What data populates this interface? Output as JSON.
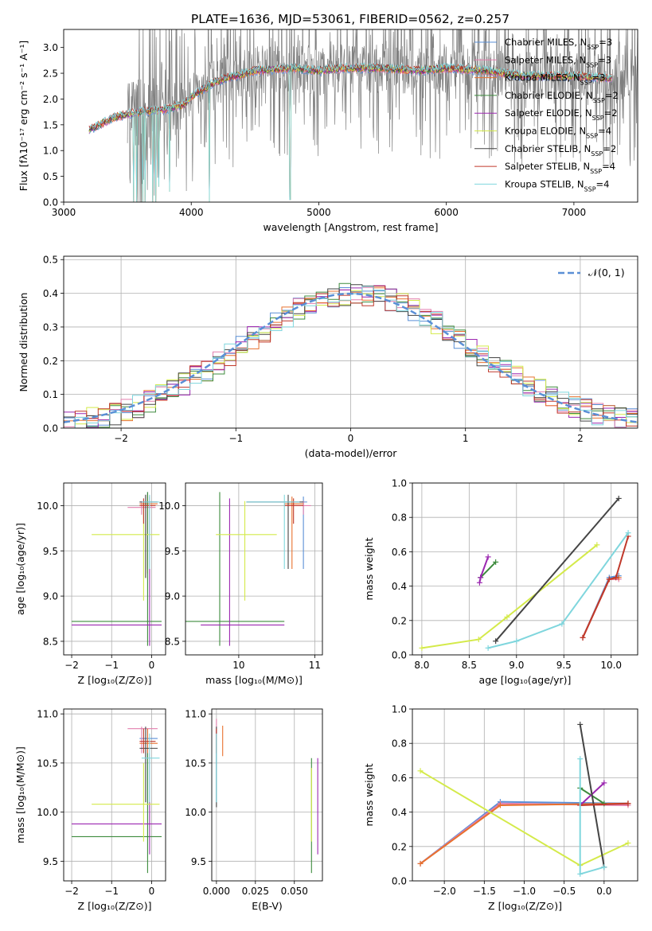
{
  "figure": {
    "title": "PLATE=1636, MJD=53061, FIBERID=0562, z=0.257"
  },
  "chart_data": [
    {
      "id": "spectrum",
      "type": "line",
      "xlabel": "wavelength [Angstrom, rest frame]",
      "ylabel": "Flux [fλ10⁻¹⁷ erg cm⁻² s⁻¹ A⁻¹]",
      "xlim": [
        3000,
        7500
      ],
      "ylim": [
        0,
        3.35
      ],
      "xticks": [
        3000,
        4000,
        5000,
        6000,
        7000
      ],
      "yticks": [
        0.0,
        0.5,
        1.0,
        1.5,
        2.0,
        2.5,
        3.0
      ],
      "grid": false,
      "legend_placement": "top-right",
      "legend": [
        {
          "name": "Chabrier MILES, N_SSP=3",
          "color": "#5a8fd6",
          "base": "Chabrier MILES, N",
          "sub": "SSP",
          "tail": "=3"
        },
        {
          "name": "Salpeter MILES, N_SSP=3",
          "color": "#e37fae",
          "base": "Salpeter MILES, N",
          "sub": "SSP",
          "tail": "=3"
        },
        {
          "name": "Kroupa MILES, N_SSP=3",
          "color": "#e8712e",
          "base": "Kroupa MILES, N",
          "sub": "SSP",
          "tail": "=3"
        },
        {
          "name": "Chabrier ELODIE, N_SSP=2",
          "color": "#3d8b3d",
          "base": "Chabrier ELODIE, N",
          "sub": "SSP",
          "tail": "=2"
        },
        {
          "name": "Salpeter ELODIE, N_SSP=2",
          "color": "#9b27b0",
          "base": "Salpeter ELODIE, N",
          "sub": "SSP",
          "tail": "=2"
        },
        {
          "name": "Kroupa ELODIE, N_SSP=4",
          "color": "#d4ea4a",
          "base": "Kroupa ELODIE, N",
          "sub": "SSP",
          "tail": "=4"
        },
        {
          "name": "Chabrier STELIB, N_SSP=2",
          "color": "#444444",
          "base": "Chabrier STELIB, N",
          "sub": "SSP",
          "tail": "=2"
        },
        {
          "name": "Salpeter STELIB, N_SSP=4",
          "color": "#c0392b",
          "base": "Salpeter STELIB, N",
          "sub": "SSP",
          "tail": "=4"
        },
        {
          "name": "Kroupa STELIB, N_SSP=4",
          "color": "#7fd6dd",
          "base": "Kroupa STELIB, N",
          "sub": "SSP",
          "tail": "=4"
        }
      ],
      "data_color": "#808080",
      "model_start": 3200,
      "model_end": 7300,
      "data_start": 3500,
      "continuum": [
        [
          3200,
          1.4
        ],
        [
          3400,
          1.65
        ],
        [
          3600,
          1.75
        ],
        [
          3800,
          1.8
        ],
        [
          3950,
          1.9
        ],
        [
          4000,
          2.05
        ],
        [
          4200,
          2.35
        ],
        [
          4500,
          2.55
        ],
        [
          4800,
          2.6
        ],
        [
          5000,
          2.55
        ],
        [
          5200,
          2.6
        ],
        [
          5500,
          2.6
        ],
        [
          5800,
          2.55
        ],
        [
          6000,
          2.6
        ],
        [
          6300,
          2.55
        ],
        [
          6600,
          2.45
        ],
        [
          7000,
          2.45
        ],
        [
          7300,
          2.4
        ]
      ],
      "dips": [
        [
          3550,
          0
        ],
        [
          3570,
          0
        ],
        [
          3620,
          0
        ],
        [
          3640,
          0
        ],
        [
          3700,
          0
        ],
        [
          3720,
          0
        ],
        [
          3745,
          0.3
        ],
        [
          3830,
          0.2
        ],
        [
          4140,
          0
        ],
        [
          4775,
          0.05
        ]
      ]
    },
    {
      "id": "residuals",
      "type": "bar",
      "xlabel": "(data-model)/error",
      "ylabel": "Normed distribution",
      "xlim": [
        -2.5,
        2.5
      ],
      "ylim": [
        0,
        0.51
      ],
      "xticks": [
        -2,
        -1,
        0,
        1,
        2
      ],
      "yticks": [
        0.0,
        0.1,
        0.2,
        0.3,
        0.4,
        0.5
      ],
      "grid": true,
      "legend_placement": "top-right",
      "bin_width": 0.1,
      "reference_curve": {
        "name": "𝒩(0, 1)",
        "color": "#5a8fd6",
        "style": "dashed"
      },
      "series_colors": [
        "#5a8fd6",
        "#e37fae",
        "#e8712e",
        "#3d8b3d",
        "#9b27b0",
        "#d4ea4a",
        "#444444",
        "#c0392b",
        "#7fd6dd"
      ]
    },
    {
      "id": "age-vs-Z",
      "type": "scatter",
      "xlabel": "Z [log₁₀(Z/Z⊙)]",
      "ylabel": "age  [log₁₀(age/yr)]",
      "xlim": [
        -2.2,
        0.35
      ],
      "ylim": [
        8.35,
        10.25
      ],
      "xticks": [
        -2,
        -1,
        0
      ],
      "yticks": [
        8.5,
        9.0,
        9.5,
        10.0
      ],
      "grid": true,
      "errorbars": [
        {
          "color": "#5a8fd6",
          "x": -0.1,
          "y": 10.04,
          "xlo": -0.3,
          "xhi": 0.15,
          "ylo": 9.3,
          "yhi": 10.15
        },
        {
          "color": "#e37fae",
          "x": -0.25,
          "y": 9.98,
          "xlo": -0.6,
          "xhi": 0.1,
          "ylo": 9.9,
          "yhi": 10.05
        },
        {
          "color": "#e8712e",
          "x": -0.1,
          "y": 10.02,
          "xlo": -0.3,
          "xhi": 0.15,
          "ylo": 9.25,
          "yhi": 10.12
        },
        {
          "color": "#3d8b3d",
          "x": -0.1,
          "y": 8.72,
          "xlo": -2.0,
          "xhi": 0.25,
          "ylo": 8.45,
          "yhi": 10.15
        },
        {
          "color": "#9b27b0",
          "x": -0.05,
          "y": 8.68,
          "xlo": -2.0,
          "xhi": 0.25,
          "ylo": 8.45,
          "yhi": 10.1
        },
        {
          "color": "#d4ea4a",
          "x": -0.2,
          "y": 9.68,
          "xlo": -1.5,
          "xhi": 0.2,
          "ylo": 8.95,
          "yhi": 10.05
        },
        {
          "color": "#444444",
          "x": -0.15,
          "y": 10.04,
          "xlo": -0.3,
          "xhi": 0.15,
          "ylo": 9.2,
          "yhi": 10.12
        },
        {
          "color": "#c0392b",
          "x": -0.2,
          "y": 10.0,
          "xlo": -0.3,
          "xhi": 0.1,
          "ylo": 9.8,
          "yhi": 10.08
        },
        {
          "color": "#7fd6dd",
          "x": -0.05,
          "y": 10.04,
          "xlo": -0.25,
          "xhi": 0.2,
          "ylo": 9.3,
          "yhi": 10.12
        }
      ]
    },
    {
      "id": "age-vs-mass",
      "type": "scatter",
      "xlabel": "mass [log₁₀(M/M⊙)]",
      "ylabel": "",
      "xlim": [
        9.3,
        11.1
      ],
      "ylim": [
        8.35,
        10.25
      ],
      "xticks": [
        9,
        10,
        11
      ],
      "yticks": [
        8.5,
        9.0,
        9.5,
        10.0
      ],
      "grid": true,
      "errorbars": [
        {
          "color": "#5a8fd6",
          "x": 10.85,
          "y": 10.04,
          "xlo": 10.1,
          "xhi": 10.9,
          "ylo": 9.3,
          "yhi": 10.1
        },
        {
          "color": "#e37fae",
          "x": 10.85,
          "y": 10.0,
          "xlo": 10.6,
          "xhi": 10.95,
          "ylo": 9.9,
          "yhi": 10.05
        },
        {
          "color": "#e8712e",
          "x": 10.7,
          "y": 10.02,
          "xlo": 10.6,
          "xhi": 10.85,
          "ylo": 9.3,
          "yhi": 10.1
        },
        {
          "color": "#3d8b3d",
          "x": 9.75,
          "y": 8.72,
          "xlo": 9.3,
          "xhi": 10.6,
          "ylo": 8.45,
          "yhi": 10.15
        },
        {
          "color": "#9b27b0",
          "x": 9.88,
          "y": 8.68,
          "xlo": 9.5,
          "xhi": 10.6,
          "ylo": 8.45,
          "yhi": 10.08
        },
        {
          "color": "#d4ea4a",
          "x": 10.08,
          "y": 9.68,
          "xlo": 9.7,
          "xhi": 10.5,
          "ylo": 8.95,
          "yhi": 10.05
        },
        {
          "color": "#444444",
          "x": 10.65,
          "y": 10.04,
          "xlo": 10.1,
          "xhi": 10.85,
          "ylo": 9.3,
          "yhi": 10.12
        },
        {
          "color": "#c0392b",
          "x": 10.72,
          "y": 10.0,
          "xlo": 10.6,
          "xhi": 10.85,
          "ylo": 9.8,
          "yhi": 10.08
        },
        {
          "color": "#7fd6dd",
          "x": 10.6,
          "y": 10.04,
          "xlo": 10.1,
          "xhi": 10.8,
          "ylo": 9.3,
          "yhi": 10.12
        }
      ]
    },
    {
      "id": "weight-vs-age",
      "type": "line",
      "xlabel": "age  [log₁₀(age/yr)]",
      "ylabel": "mass weight",
      "xlim": [
        7.9,
        10.28
      ],
      "ylim": [
        0,
        1.0
      ],
      "xticks": [
        8.0,
        8.5,
        9.0,
        9.5,
        10.0
      ],
      "yticks": [
        0.0,
        0.2,
        0.4,
        0.6,
        0.8,
        1.0
      ],
      "grid": true,
      "series": [
        {
          "color": "#5a8fd6",
          "points": [
            [
              9.7,
              0.1
            ],
            [
              9.98,
              0.45
            ],
            [
              10.08,
              0.46
            ]
          ]
        },
        {
          "color": "#e37fae",
          "points": [
            [
              9.7,
              0.1
            ],
            [
              9.98,
              0.44
            ],
            [
              10.08,
              0.44
            ]
          ]
        },
        {
          "color": "#e8712e",
          "points": [
            [
              9.7,
              0.1
            ],
            [
              9.98,
              0.44
            ],
            [
              10.08,
              0.45
            ]
          ]
        },
        {
          "color": "#3d8b3d",
          "points": [
            [
              8.62,
              0.45
            ],
            [
              8.78,
              0.54
            ]
          ]
        },
        {
          "color": "#9b27b0",
          "points": [
            [
              8.61,
              0.42
            ],
            [
              8.62,
              0.45
            ],
            [
              8.7,
              0.57
            ]
          ]
        },
        {
          "color": "#d4ea4a",
          "points": [
            [
              8.0,
              0.04
            ],
            [
              8.6,
              0.09
            ],
            [
              8.9,
              0.22
            ],
            [
              9.85,
              0.64
            ]
          ]
        },
        {
          "color": "#444444",
          "points": [
            [
              8.78,
              0.08
            ],
            [
              10.08,
              0.91
            ]
          ]
        },
        {
          "color": "#c0392b",
          "points": [
            [
              9.7,
              0.1
            ],
            [
              9.98,
              0.44
            ],
            [
              10.05,
              0.45
            ],
            [
              10.18,
              0.69
            ]
          ]
        },
        {
          "color": "#7fd6dd",
          "points": [
            [
              8.7,
              0.04
            ],
            [
              9.0,
              0.08
            ],
            [
              9.48,
              0.18
            ],
            [
              10.18,
              0.71
            ]
          ]
        }
      ]
    },
    {
      "id": "mass-vs-Z",
      "type": "scatter",
      "xlabel": "Z [log₁₀(Z/Z⊙)]",
      "ylabel": "mass [log₁₀(M/M⊙)]",
      "xlim": [
        -2.2,
        0.35
      ],
      "ylim": [
        9.3,
        11.05
      ],
      "xticks": [
        -2,
        -1,
        0
      ],
      "yticks": [
        9.5,
        10.0,
        10.5,
        11.0
      ],
      "grid": true,
      "errorbars": [
        {
          "color": "#5a8fd6",
          "x": -0.1,
          "y": 10.75,
          "xlo": -0.3,
          "xhi": 0.15,
          "ylo": 10.1,
          "yhi": 10.85
        },
        {
          "color": "#e37fae",
          "x": -0.25,
          "y": 10.85,
          "xlo": -0.6,
          "xhi": 0.15,
          "ylo": 10.6,
          "yhi": 10.87
        },
        {
          "color": "#e8712e",
          "x": -0.1,
          "y": 10.7,
          "xlo": -0.3,
          "xhi": 0.15,
          "ylo": 10.6,
          "yhi": 10.85
        },
        {
          "color": "#3d8b3d",
          "x": -0.1,
          "y": 9.75,
          "xlo": -2.0,
          "xhi": 0.25,
          "ylo": 9.38,
          "yhi": 10.6
        },
        {
          "color": "#9b27b0",
          "x": -0.05,
          "y": 9.88,
          "xlo": -2.0,
          "xhi": 0.25,
          "ylo": 9.57,
          "yhi": 10.6
        },
        {
          "color": "#d4ea4a",
          "x": -0.2,
          "y": 10.08,
          "xlo": -1.5,
          "xhi": 0.2,
          "ylo": 9.7,
          "yhi": 10.5
        },
        {
          "color": "#444444",
          "x": -0.15,
          "y": 10.65,
          "xlo": -0.3,
          "xhi": 0.15,
          "ylo": 10.1,
          "yhi": 10.87
        },
        {
          "color": "#c0392b",
          "x": -0.2,
          "y": 10.72,
          "xlo": -0.3,
          "xhi": 0.1,
          "ylo": 10.6,
          "yhi": 10.85
        },
        {
          "color": "#7fd6dd",
          "x": -0.05,
          "y": 10.55,
          "xlo": -0.25,
          "xhi": 0.2,
          "ylo": 10.1,
          "yhi": 10.8
        }
      ]
    },
    {
      "id": "mass-vs-EBV",
      "type": "scatter",
      "xlabel": "E(B-V)",
      "ylabel": "",
      "xlim": [
        -0.003,
        0.068
      ],
      "ylim": [
        9.3,
        11.05
      ],
      "xticks": [
        0.0,
        0.025,
        0.05
      ],
      "yticks": [
        9.5,
        10.0,
        10.5,
        11.0
      ],
      "grid": true,
      "errorbars": [
        {
          "color": "#5a8fd6",
          "x": 0.0,
          "y": 10.75,
          "xlo": 0.0,
          "xhi": 0.0,
          "ylo": 10.1,
          "yhi": 10.85
        },
        {
          "color": "#e37fae",
          "x": 0.0,
          "y": 10.85,
          "xlo": 0.0,
          "xhi": 0.0,
          "ylo": 10.6,
          "yhi": 10.95
        },
        {
          "color": "#e8712e",
          "x": 0.004,
          "y": 10.7,
          "xlo": 0.004,
          "xhi": 0.004,
          "ylo": 10.57,
          "yhi": 10.88
        },
        {
          "color": "#3d8b3d",
          "x": 0.061,
          "y": 9.75,
          "xlo": 0.061,
          "xhi": 0.061,
          "ylo": 9.38,
          "yhi": 10.55
        },
        {
          "color": "#9b27b0",
          "x": 0.065,
          "y": 9.88,
          "xlo": 0.065,
          "xhi": 0.065,
          "ylo": 9.57,
          "yhi": 10.55
        },
        {
          "color": "#d4ea4a",
          "x": 0.061,
          "y": 10.08,
          "xlo": 0.061,
          "xhi": 0.061,
          "ylo": 9.7,
          "yhi": 10.45
        },
        {
          "color": "#444444",
          "x": 0.0,
          "y": 10.65,
          "xlo": 0.0,
          "xhi": 0.0,
          "ylo": 10.05,
          "yhi": 10.87
        },
        {
          "color": "#c0392b",
          "x": 0.0,
          "y": 10.72,
          "xlo": 0.0,
          "xhi": 0.0,
          "ylo": 10.6,
          "yhi": 10.85
        },
        {
          "color": "#7fd6dd",
          "x": 0.0,
          "y": 10.55,
          "xlo": 0.0,
          "xhi": 0.0,
          "ylo": 10.1,
          "yhi": 10.8
        }
      ]
    },
    {
      "id": "weight-vs-Z",
      "type": "line",
      "xlabel": "Z [log₁₀(Z/Z⊙)]",
      "ylabel": "mass weight",
      "xlim": [
        -2.4,
        0.42
      ],
      "ylim": [
        0,
        1.0
      ],
      "xticks": [
        -2.0,
        -1.5,
        -1.0,
        -0.5,
        0.0
      ],
      "yticks": [
        0.0,
        0.2,
        0.4,
        0.6,
        0.8,
        1.0
      ],
      "grid": true,
      "series": [
        {
          "color": "#5a8fd6",
          "points": [
            [
              -2.3,
              0.1
            ],
            [
              -1.3,
              0.46
            ],
            [
              0.3,
              0.45
            ]
          ]
        },
        {
          "color": "#e37fae",
          "points": [
            [
              -2.3,
              0.1
            ],
            [
              -1.3,
              0.45
            ],
            [
              0.3,
              0.44
            ]
          ]
        },
        {
          "color": "#e8712e",
          "points": [
            [
              -2.3,
              0.1
            ],
            [
              -1.3,
              0.44
            ],
            [
              0.3,
              0.45
            ]
          ]
        },
        {
          "color": "#3d8b3d",
          "points": [
            [
              -0.3,
              0.54
            ],
            [
              0.0,
              0.45
            ]
          ]
        },
        {
          "color": "#9b27b0",
          "points": [
            [
              -0.3,
              0.44
            ],
            [
              0.0,
              0.57
            ]
          ]
        },
        {
          "color": "#d4ea4a",
          "points": [
            [
              -2.3,
              0.64
            ],
            [
              -0.3,
              0.09
            ],
            [
              0.3,
              0.22
            ]
          ]
        },
        {
          "color": "#444444",
          "points": [
            [
              -0.3,
              0.91
            ],
            [
              0.0,
              0.08
            ]
          ]
        },
        {
          "color": "#c0392b",
          "points": [
            [
              -0.3,
              0.44
            ],
            [
              0.3,
              0.45
            ]
          ]
        },
        {
          "color": "#7fd6dd",
          "points": [
            [
              -0.3,
              0.71
            ],
            [
              -0.3,
              0.04
            ],
            [
              0.0,
              0.08
            ]
          ]
        }
      ]
    }
  ]
}
